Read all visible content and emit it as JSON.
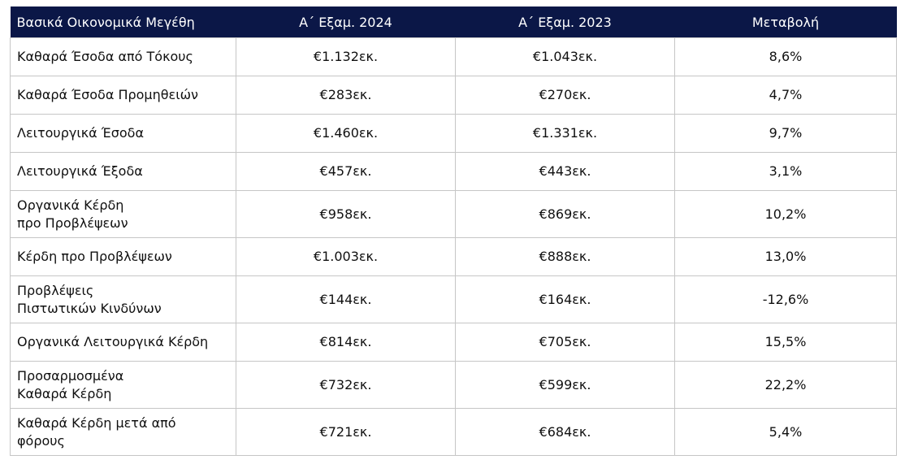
{
  "table": {
    "headers": [
      "Βασικά Οικονομικά Μεγέθη",
      "Α΄ Εξαμ. 2024",
      "Α΄ Εξαμ. 2023",
      "Μεταβολή"
    ],
    "rows": [
      {
        "label": [
          "Καθαρά Έσοδα από Τόκους"
        ],
        "h1_2024": "€1.132εκ.",
        "h1_2023": "€1.043εκ.",
        "change": "8,6%"
      },
      {
        "label": [
          "Καθαρά Έσοδα Προμηθειών"
        ],
        "h1_2024": "€283εκ.",
        "h1_2023": "€270εκ.",
        "change": "4,7%"
      },
      {
        "label": [
          "Λειτουργικά Έσοδα"
        ],
        "h1_2024": "€1.460εκ.",
        "h1_2023": "€1.331εκ.",
        "change": "9,7%"
      },
      {
        "label": [
          "Λειτουργικά Έξοδα"
        ],
        "h1_2024": "€457εκ.",
        "h1_2023": "€443εκ.",
        "change": "3,1%"
      },
      {
        "label": [
          "Οργανικά Κέρδη",
          "προ Προβλέψεων"
        ],
        "h1_2024": "€958εκ.",
        "h1_2023": "€869εκ.",
        "change": "10,2%"
      },
      {
        "label": [
          "Κέρδη προ Προβλέψεων"
        ],
        "h1_2024": "€1.003εκ.",
        "h1_2023": "€888εκ.",
        "change": "13,0%"
      },
      {
        "label": [
          "Προβλέψεις",
          "Πιστωτικών Κινδύνων"
        ],
        "h1_2024": "€144εκ.",
        "h1_2023": "€164εκ.",
        "change": "-12,6%"
      },
      {
        "label": [
          "Οργανικά Λειτουργικά Κέρδη"
        ],
        "h1_2024": "€814εκ.",
        "h1_2023": "€705εκ.",
        "change": "15,5%"
      },
      {
        "label": [
          "Προσαρμοσμένα",
          "Καθαρά Κέρδη"
        ],
        "h1_2024": "€732εκ.",
        "h1_2023": "€599εκ.",
        "change": "22,2%"
      },
      {
        "label": [
          "Καθαρά Κέρδη μετά από",
          "φόρους"
        ],
        "h1_2024": "€721εκ.",
        "h1_2023": "€684εκ.",
        "change": "5,4%"
      }
    ]
  }
}
